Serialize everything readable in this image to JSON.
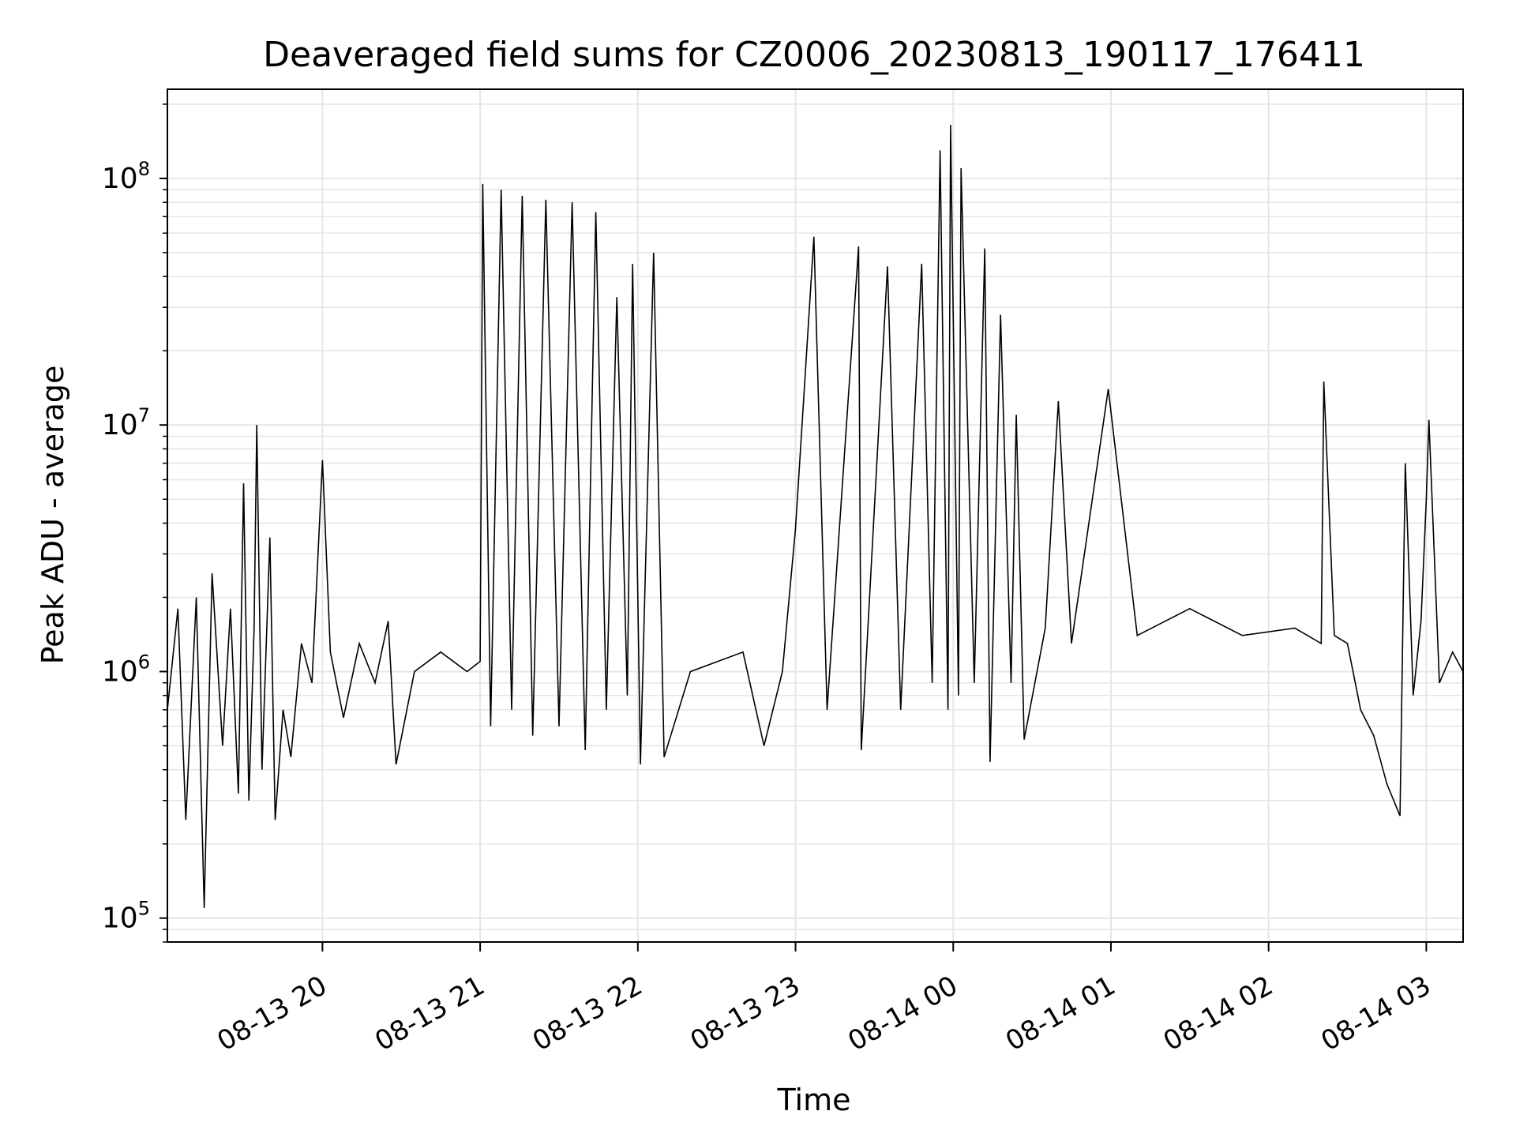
{
  "chart_data": {
    "type": "line",
    "title": "Deaveraged field sums for CZ0006_20230813_190117_176411",
    "xlabel": "Time",
    "ylabel": "Peak ADU - average",
    "yscale": "log",
    "grid": true,
    "line_color": "#000000",
    "grid_color": "#e6e6e6",
    "xlim": [
      "2023-08-13 19:01",
      "2023-08-14 03:14"
    ],
    "ylim": [
      80000,
      230000000
    ],
    "x_ticks": [
      {
        "value": "2023-08-13 20:00",
        "label": "08-13 20"
      },
      {
        "value": "2023-08-13 21:00",
        "label": "08-13 21"
      },
      {
        "value": "2023-08-13 22:00",
        "label": "08-13 22"
      },
      {
        "value": "2023-08-13 23:00",
        "label": "08-13 23"
      },
      {
        "value": "2023-08-14 00:00",
        "label": "08-14 00"
      },
      {
        "value": "2023-08-14 01:00",
        "label": "08-14 01"
      },
      {
        "value": "2023-08-14 02:00",
        "label": "08-14 02"
      },
      {
        "value": "2023-08-14 03:00",
        "label": "08-14 03"
      }
    ],
    "y_ticks": [
      {
        "value": 100000,
        "base": "10",
        "exp": "5"
      },
      {
        "value": 1000000,
        "base": "10",
        "exp": "6"
      },
      {
        "value": 10000000,
        "base": "10",
        "exp": "7"
      },
      {
        "value": 100000000,
        "base": "10",
        "exp": "8"
      }
    ],
    "series": [
      {
        "points": [
          [
            "2023-08-13 19:01",
            700000
          ],
          [
            "2023-08-13 19:05",
            1800000
          ],
          [
            "2023-08-13 19:08",
            250000
          ],
          [
            "2023-08-13 19:12",
            2000000
          ],
          [
            "2023-08-13 19:15",
            110000
          ],
          [
            "2023-08-13 19:18",
            2500000
          ],
          [
            "2023-08-13 19:22",
            500000
          ],
          [
            "2023-08-13 19:25",
            1800000
          ],
          [
            "2023-08-13 19:28",
            320000
          ],
          [
            "2023-08-13 19:30",
            5800000
          ],
          [
            "2023-08-13 19:32",
            300000
          ],
          [
            "2023-08-13 19:34",
            1500000
          ],
          [
            "2023-08-13 19:35",
            10000000
          ],
          [
            "2023-08-13 19:37",
            400000
          ],
          [
            "2023-08-13 19:40",
            3500000
          ],
          [
            "2023-08-13 19:42",
            250000
          ],
          [
            "2023-08-13 19:45",
            700000
          ],
          [
            "2023-08-13 19:48",
            450000
          ],
          [
            "2023-08-13 19:52",
            1300000
          ],
          [
            "2023-08-13 19:56",
            900000
          ],
          [
            "2023-08-13 20:00",
            7200000
          ],
          [
            "2023-08-13 20:03",
            1200000
          ],
          [
            "2023-08-13 20:08",
            650000
          ],
          [
            "2023-08-13 20:14",
            1300000
          ],
          [
            "2023-08-13 20:20",
            900000
          ],
          [
            "2023-08-13 20:25",
            1600000
          ],
          [
            "2023-08-13 20:28",
            420000
          ],
          [
            "2023-08-13 20:35",
            1000000
          ],
          [
            "2023-08-13 20:45",
            1200000
          ],
          [
            "2023-08-13 20:55",
            1000000
          ],
          [
            "2023-08-13 21:00",
            1100000
          ],
          [
            "2023-08-13 21:01",
            95000000
          ],
          [
            "2023-08-13 21:04",
            600000
          ],
          [
            "2023-08-13 21:08",
            90000000
          ],
          [
            "2023-08-13 21:12",
            700000
          ],
          [
            "2023-08-13 21:16",
            85000000
          ],
          [
            "2023-08-13 21:20",
            550000
          ],
          [
            "2023-08-13 21:25",
            82000000
          ],
          [
            "2023-08-13 21:30",
            600000
          ],
          [
            "2023-08-13 21:35",
            80000000
          ],
          [
            "2023-08-13 21:40",
            480000
          ],
          [
            "2023-08-13 21:44",
            73000000
          ],
          [
            "2023-08-13 21:48",
            700000
          ],
          [
            "2023-08-13 21:52",
            33000000
          ],
          [
            "2023-08-13 21:56",
            800000
          ],
          [
            "2023-08-13 21:58",
            45000000
          ],
          [
            "2023-08-13 22:01",
            420000
          ],
          [
            "2023-08-13 22:06",
            50000000
          ],
          [
            "2023-08-13 22:10",
            450000
          ],
          [
            "2023-08-13 22:20",
            1000000
          ],
          [
            "2023-08-13 22:40",
            1200000
          ],
          [
            "2023-08-13 22:48",
            500000
          ],
          [
            "2023-08-13 22:55",
            1000000
          ],
          [
            "2023-08-13 23:00",
            3800000
          ],
          [
            "2023-08-13 23:07",
            58000000
          ],
          [
            "2023-08-13 23:12",
            700000
          ],
          [
            "2023-08-13 23:24",
            53000000
          ],
          [
            "2023-08-13 23:25",
            480000
          ],
          [
            "2023-08-13 23:35",
            44000000
          ],
          [
            "2023-08-13 23:40",
            700000
          ],
          [
            "2023-08-13 23:48",
            45000000
          ],
          [
            "2023-08-13 23:52",
            900000
          ],
          [
            "2023-08-13 23:55",
            130000000
          ],
          [
            "2023-08-13 23:58",
            700000
          ],
          [
            "2023-08-13 23:59",
            165000000
          ],
          [
            "2023-08-14 00:02",
            800000
          ],
          [
            "2023-08-14 00:03",
            110000000
          ],
          [
            "2023-08-14 00:08",
            900000
          ],
          [
            "2023-08-14 00:12",
            52000000
          ],
          [
            "2023-08-14 00:14",
            430000
          ],
          [
            "2023-08-14 00:18",
            28000000
          ],
          [
            "2023-08-14 00:22",
            900000
          ],
          [
            "2023-08-14 00:24",
            11000000
          ],
          [
            "2023-08-14 00:27",
            530000
          ],
          [
            "2023-08-14 00:35",
            1500000
          ],
          [
            "2023-08-14 00:40",
            12500000
          ],
          [
            "2023-08-14 00:45",
            1300000
          ],
          [
            "2023-08-14 00:59",
            14000000
          ],
          [
            "2023-08-14 01:10",
            1400000
          ],
          [
            "2023-08-14 01:30",
            1800000
          ],
          [
            "2023-08-14 01:50",
            1400000
          ],
          [
            "2023-08-14 02:10",
            1500000
          ],
          [
            "2023-08-14 02:20",
            1300000
          ],
          [
            "2023-08-14 02:21",
            15000000
          ],
          [
            "2023-08-14 02:25",
            1400000
          ],
          [
            "2023-08-14 02:30",
            1300000
          ],
          [
            "2023-08-14 02:35",
            700000
          ],
          [
            "2023-08-14 02:40",
            550000
          ],
          [
            "2023-08-14 02:45",
            350000
          ],
          [
            "2023-08-14 02:50",
            260000
          ],
          [
            "2023-08-14 02:52",
            7000000
          ],
          [
            "2023-08-14 02:55",
            800000
          ],
          [
            "2023-08-14 02:58",
            1600000
          ],
          [
            "2023-08-14 03:00",
            5000000
          ],
          [
            "2023-08-14 03:01",
            10500000
          ],
          [
            "2023-08-14 03:05",
            900000
          ],
          [
            "2023-08-14 03:10",
            1200000
          ],
          [
            "2023-08-14 03:14",
            1000000
          ]
        ]
      }
    ]
  }
}
